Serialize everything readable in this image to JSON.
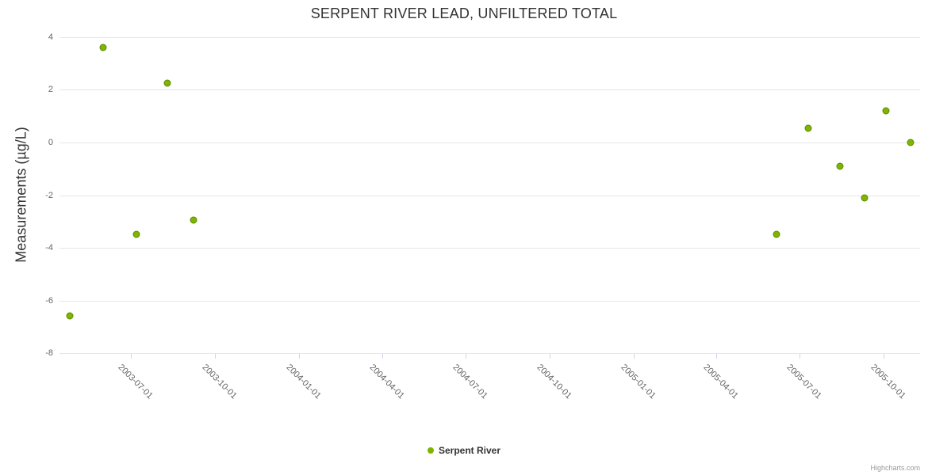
{
  "title": "SERPENT RIVER LEAD, UNFILTERED TOTAL",
  "credits_label": "Highcharts.com",
  "legend": {
    "items": [
      {
        "label": "Serpent River",
        "color": "#7db500"
      }
    ]
  },
  "chart_data": {
    "type": "scatter",
    "title": "SERPENT RIVER LEAD, UNFILTERED TOTAL",
    "xlabel": "",
    "ylabel": "Measurements (µg/L)",
    "legend_position": "bottom-center",
    "grid": "horizontal",
    "x_axis": {
      "type": "datetime",
      "min": "2003-04-14",
      "max": "2005-11-10",
      "label_rotation": 45,
      "ticks": [
        "2003-07-01",
        "2003-10-01",
        "2004-01-01",
        "2004-04-01",
        "2004-07-01",
        "2004-10-01",
        "2005-01-01",
        "2005-04-01",
        "2005-07-01",
        "2005-10-01"
      ]
    },
    "y_axis": {
      "min": -8,
      "max": 4,
      "ticks": [
        4,
        2,
        0,
        -2,
        -4,
        -6,
        -8
      ]
    },
    "series": [
      {
        "name": "Serpent River",
        "color": "#7db500",
        "marker_stroke": "#5e8a00",
        "points": [
          {
            "x": "2003-04-25",
            "y": -6.6
          },
          {
            "x": "2003-06-01",
            "y": 3.6
          },
          {
            "x": "2003-07-07",
            "y": -3.5
          },
          {
            "x": "2003-08-10",
            "y": 2.25
          },
          {
            "x": "2003-09-08",
            "y": -2.95
          },
          {
            "x": "2005-06-06",
            "y": -3.5
          },
          {
            "x": "2005-07-11",
            "y": 0.55
          },
          {
            "x": "2005-08-14",
            "y": -0.9
          },
          {
            "x": "2005-09-10",
            "y": -2.1
          },
          {
            "x": "2005-10-04",
            "y": 1.2
          },
          {
            "x": "2005-10-31",
            "y": 0.0
          }
        ]
      }
    ]
  }
}
